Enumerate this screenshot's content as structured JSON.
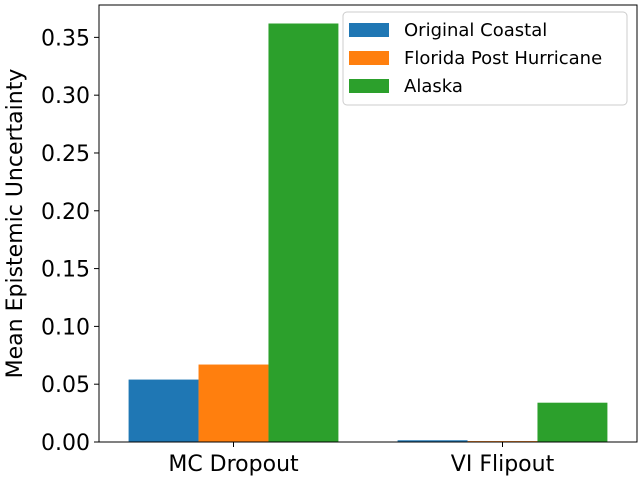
{
  "chart_data": {
    "type": "bar",
    "categories": [
      "MC Dropout",
      "VI Flipout"
    ],
    "series": [
      {
        "name": "Original Coastal",
        "color": "#1f77b4",
        "values": [
          0.054,
          0.0015
        ]
      },
      {
        "name": "Florida Post Hurricane",
        "color": "#ff7f0e",
        "values": [
          0.067,
          0.0008
        ]
      },
      {
        "name": "Alaska",
        "color": "#2ca02c",
        "values": [
          0.362,
          0.034
        ]
      }
    ],
    "title": "",
    "xlabel": "",
    "ylabel": "Mean Epistemic Uncertainty",
    "ylim": [
      0,
      0.378
    ],
    "yticks": [
      "0.00",
      "0.05",
      "0.10",
      "0.15",
      "0.20",
      "0.25",
      "0.30",
      "0.35"
    ],
    "grid": false,
    "legend_position": "top-right"
  }
}
